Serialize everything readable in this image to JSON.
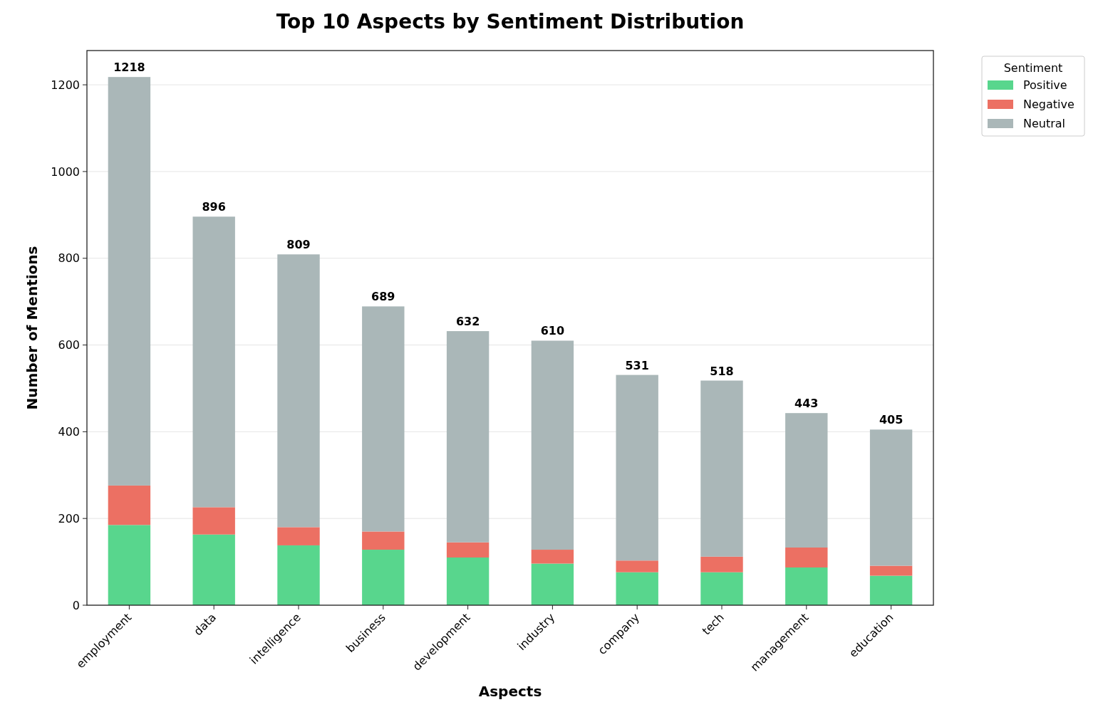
{
  "chart_data": {
    "type": "bar",
    "title": "Top 10 Aspects by Sentiment Distribution",
    "xlabel": "Aspects",
    "ylabel": "Number of Mentions",
    "legend_title": "Sentiment",
    "categories": [
      "employment",
      "data",
      "intelligence",
      "business",
      "development",
      "industry",
      "company",
      "tech",
      "management",
      "education"
    ],
    "stacked": true,
    "series": [
      {
        "name": "Positive",
        "color": "#58d68d",
        "values": [
          185,
          163,
          138,
          128,
          110,
          96,
          76,
          76,
          87,
          68
        ]
      },
      {
        "name": "Negative",
        "color": "#ec7063",
        "values": [
          91,
          63,
          42,
          42,
          35,
          32,
          27,
          36,
          46,
          23
        ]
      },
      {
        "name": "Neutral",
        "color": "#aab7b8",
        "values": [
          942,
          670,
          629,
          519,
          487,
          482,
          428,
          406,
          310,
          314
        ]
      }
    ],
    "totals": [
      "1218",
      "896",
      "809",
      "689",
      "632",
      "610",
      "531",
      "518",
      "443",
      "405"
    ],
    "ylim": [
      0,
      1279
    ],
    "yticks": [
      0,
      200,
      400,
      600,
      800,
      1000,
      1200
    ],
    "grid": "y",
    "legend": "top right"
  }
}
